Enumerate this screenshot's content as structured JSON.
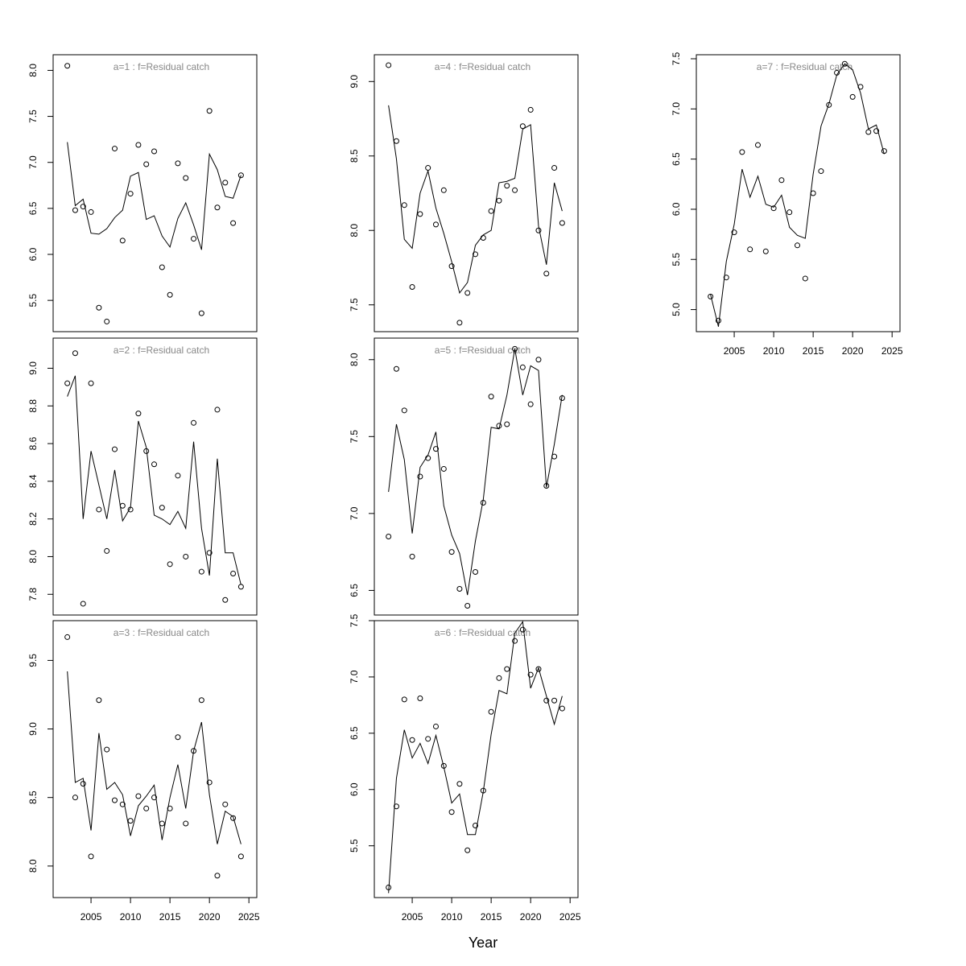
{
  "xlabel": "Year",
  "chart_data": [
    {
      "type": "line",
      "title": "a=1  :  f=Residual catch",
      "x": [
        2002,
        2003,
        2004,
        2005,
        2006,
        2007,
        2008,
        2009,
        2010,
        2011,
        2012,
        2013,
        2014,
        2015,
        2016,
        2017,
        2018,
        2019,
        2020,
        2021,
        2022,
        2023,
        2024
      ],
      "series": [
        {
          "style": "line",
          "color": "#000000",
          "values": [
            7.22,
            6.53,
            6.6,
            6.23,
            6.22,
            6.28,
            6.4,
            6.48,
            6.85,
            6.89,
            6.38,
            6.42,
            6.2,
            6.08,
            6.39,
            6.56,
            6.32,
            6.05,
            7.09,
            6.92,
            6.63,
            6.61,
            6.86
          ]
        },
        {
          "style": "points",
          "color": "#000000",
          "values": [
            8.05,
            6.48,
            6.52,
            6.46,
            5.42,
            5.27,
            7.15,
            6.15,
            6.66,
            7.19,
            6.98,
            7.12,
            5.86,
            5.56,
            6.99,
            6.83,
            6.17,
            5.36,
            7.56,
            6.51,
            6.78,
            6.34,
            6.86
          ]
        }
      ],
      "xlim": [
        2000.2,
        2026
      ],
      "ylim": [
        5.16,
        8.17
      ],
      "yticks": [
        5.5,
        {
          "value": 6,
          "label": "6.0"
        },
        6.5,
        {
          "value": 7,
          "label": "7.0"
        },
        7.5,
        {
          "value": 8,
          "label": "8.0"
        }
      ]
    },
    {
      "type": "line",
      "title": "a=2  :  f=Residual catch",
      "x": [
        2002,
        2003,
        2004,
        2005,
        2006,
        2007,
        2008,
        2009,
        2010,
        2011,
        2012,
        2013,
        2014,
        2015,
        2016,
        2017,
        2018,
        2019,
        2020,
        2021,
        2022,
        2023,
        2024
      ],
      "series": [
        {
          "style": "line",
          "color": "#000000",
          "values": [
            8.85,
            8.96,
            8.2,
            8.56,
            8.38,
            8.2,
            8.46,
            8.19,
            8.26,
            8.72,
            8.58,
            8.22,
            8.2,
            8.17,
            8.24,
            8.15,
            8.61,
            8.15,
            7.9,
            8.52,
            8.02,
            8.02,
            7.85
          ]
        },
        {
          "style": "points",
          "color": "#000000",
          "values": [
            8.92,
            9.08,
            7.75,
            8.92,
            8.25,
            8.03,
            8.57,
            8.27,
            8.25,
            8.76,
            8.56,
            8.49,
            8.26,
            7.96,
            8.43,
            8.0,
            8.71,
            7.92,
            8.02,
            8.78,
            7.77,
            7.91,
            7.84
          ]
        }
      ],
      "xlim": [
        2000.2,
        2026
      ],
      "ylim": [
        7.69,
        9.16
      ],
      "yticks": [
        7.8,
        {
          "value": 8,
          "label": "8.0"
        },
        8.2,
        8.4,
        8.6,
        8.8,
        {
          "value": 9,
          "label": "9.0"
        }
      ]
    },
    {
      "type": "line",
      "title": "a=3  :  f=Residual catch",
      "x": [
        2002,
        2003,
        2004,
        2005,
        2006,
        2007,
        2008,
        2009,
        2010,
        2011,
        2012,
        2013,
        2014,
        2015,
        2016,
        2017,
        2018,
        2019,
        2020,
        2021,
        2022,
        2023,
        2024
      ],
      "series": [
        {
          "style": "line",
          "color": "#000000",
          "values": [
            9.42,
            8.61,
            8.64,
            8.26,
            8.97,
            8.56,
            8.61,
            8.52,
            8.22,
            8.44,
            8.51,
            8.59,
            8.19,
            8.5,
            8.74,
            8.42,
            8.84,
            9.05,
            8.52,
            8.16,
            8.4,
            8.36,
            8.16
          ]
        },
        {
          "style": "points",
          "color": "#000000",
          "values": [
            9.67,
            8.5,
            8.6,
            8.07,
            9.21,
            8.85,
            8.48,
            8.45,
            8.33,
            8.51,
            8.42,
            8.5,
            8.31,
            8.42,
            8.94,
            8.31,
            8.84,
            9.21,
            8.61,
            7.93,
            8.45,
            8.35,
            8.07
          ]
        }
      ],
      "xlim": [
        2000.2,
        2026
      ],
      "ylim": [
        7.77,
        9.79
      ],
      "xticks": [
        2005,
        2010,
        2015,
        2020,
        2025
      ],
      "yticks": [
        {
          "value": 8,
          "label": "8.0"
        },
        8.5,
        {
          "value": 9,
          "label": "9.0"
        },
        9.5
      ]
    },
    {
      "type": "line",
      "title": "a=4  :  f=Residual catch",
      "x": [
        2002,
        2003,
        2004,
        2005,
        2006,
        2007,
        2008,
        2009,
        2010,
        2011,
        2012,
        2013,
        2014,
        2015,
        2016,
        2017,
        2018,
        2019,
        2020,
        2021,
        2022,
        2023,
        2024
      ],
      "series": [
        {
          "style": "line",
          "color": "#000000",
          "values": [
            8.84,
            8.48,
            7.94,
            7.88,
            8.25,
            8.4,
            8.15,
            7.98,
            7.79,
            7.58,
            7.65,
            7.9,
            7.97,
            8.0,
            8.32,
            8.33,
            8.35,
            8.68,
            8.71,
            8.03,
            7.77,
            8.32,
            8.13
          ]
        },
        {
          "style": "points",
          "color": "#000000",
          "values": [
            9.11,
            8.6,
            8.17,
            7.62,
            8.11,
            8.42,
            8.04,
            8.27,
            7.76,
            7.38,
            7.58,
            7.84,
            7.95,
            8.13,
            8.2,
            8.3,
            8.27,
            8.7,
            8.81,
            8.0,
            7.71,
            8.42,
            8.05
          ]
        }
      ],
      "xlim": [
        2000.2,
        2026
      ],
      "ylim": [
        7.32,
        9.18
      ],
      "yticks": [
        7.5,
        {
          "value": 8,
          "label": "8.0"
        },
        8.5,
        {
          "value": 9,
          "label": "9.0"
        }
      ]
    },
    {
      "type": "line",
      "title": "a=5  :  f=Residual catch",
      "x": [
        2002,
        2003,
        2004,
        2005,
        2006,
        2007,
        2008,
        2009,
        2010,
        2011,
        2012,
        2013,
        2014,
        2015,
        2016,
        2017,
        2018,
        2019,
        2020,
        2021,
        2022,
        2023,
        2024
      ],
      "series": [
        {
          "style": "line",
          "color": "#000000",
          "values": [
            7.14,
            7.58,
            7.35,
            6.87,
            7.3,
            7.38,
            7.53,
            7.05,
            6.86,
            6.74,
            6.47,
            6.82,
            7.09,
            7.56,
            7.55,
            7.77,
            8.07,
            7.77,
            7.96,
            7.93,
            7.17,
            7.45,
            7.77
          ]
        },
        {
          "style": "points",
          "color": "#000000",
          "values": [
            6.85,
            7.94,
            7.67,
            6.72,
            7.24,
            7.36,
            7.42,
            7.29,
            6.75,
            6.51,
            6.4,
            6.62,
            7.07,
            7.76,
            7.57,
            7.58,
            8.07,
            7.95,
            7.71,
            8.0,
            7.18,
            7.37,
            7.75
          ]
        }
      ],
      "xlim": [
        2000.2,
        2026
      ],
      "ylim": [
        6.34,
        8.14
      ],
      "yticks": [
        6.5,
        {
          "value": 7,
          "label": "7.0"
        },
        7.5,
        {
          "value": 8,
          "label": "8.0"
        }
      ]
    },
    {
      "type": "line",
      "title": "a=6  :  f=Residual catch",
      "x": [
        2002,
        2003,
        2004,
        2005,
        2006,
        2007,
        2008,
        2009,
        2010,
        2011,
        2012,
        2013,
        2014,
        2015,
        2016,
        2017,
        2018,
        2019,
        2020,
        2021,
        2022,
        2023,
        2024
      ],
      "series": [
        {
          "style": "line",
          "color": "#000000",
          "values": [
            5.08,
            6.1,
            6.53,
            6.28,
            6.41,
            6.23,
            6.48,
            6.2,
            5.88,
            5.96,
            5.6,
            5.6,
            5.98,
            6.49,
            6.88,
            6.85,
            7.39,
            7.49,
            6.9,
            7.08,
            6.83,
            6.58,
            6.83
          ]
        },
        {
          "style": "points",
          "color": "#000000",
          "values": [
            5.13,
            5.85,
            6.8,
            6.44,
            6.81,
            6.45,
            6.56,
            6.21,
            5.8,
            6.05,
            5.46,
            5.68,
            5.99,
            6.69,
            6.99,
            7.07,
            7.32,
            7.42,
            7.02,
            7.07,
            6.79,
            6.79,
            6.72
          ]
        }
      ],
      "xlim": [
        2000.2,
        2026
      ],
      "ylim": [
        5.04,
        7.5
      ],
      "xticks": [
        2005,
        2010,
        2015,
        2020,
        2025
      ],
      "yticks": [
        5.5,
        {
          "value": 6,
          "label": "6.0"
        },
        6.5,
        {
          "value": 7,
          "label": "7.0"
        },
        7.5
      ]
    },
    {
      "type": "line",
      "title": "a=7  :  f=Residual catch",
      "x": [
        2002,
        2003,
        2004,
        2005,
        2006,
        2007,
        2008,
        2009,
        2010,
        2011,
        2012,
        2013,
        2014,
        2015,
        2016,
        2017,
        2018,
        2019,
        2020,
        2021,
        2022,
        2023,
        2024
      ],
      "series": [
        {
          "style": "line",
          "color": "#000000",
          "values": [
            5.15,
            4.83,
            5.48,
            5.85,
            6.4,
            6.12,
            6.33,
            6.05,
            6.02,
            6.14,
            5.82,
            5.74,
            5.71,
            6.35,
            6.83,
            7.05,
            7.34,
            7.45,
            7.39,
            7.16,
            6.8,
            6.84,
            6.55
          ]
        },
        {
          "style": "points",
          "color": "#000000",
          "values": [
            5.13,
            4.89,
            5.32,
            5.77,
            6.57,
            5.6,
            6.64,
            5.58,
            6.01,
            6.29,
            5.97,
            5.64,
            5.31,
            6.16,
            6.38,
            7.04,
            7.36,
            7.45,
            7.12,
            7.22,
            6.77,
            6.78,
            6.58
          ]
        }
      ],
      "xlim": [
        2000.2,
        2026
      ],
      "ylim": [
        4.78,
        7.54
      ],
      "xticks": [
        2005,
        2010,
        2015,
        2020,
        2025
      ],
      "yticks": [
        {
          "value": 5,
          "label": "5.0"
        },
        5.5,
        {
          "value": 6,
          "label": "6.0"
        },
        6.5,
        {
          "value": 7,
          "label": "7.0"
        },
        7.5
      ]
    }
  ]
}
